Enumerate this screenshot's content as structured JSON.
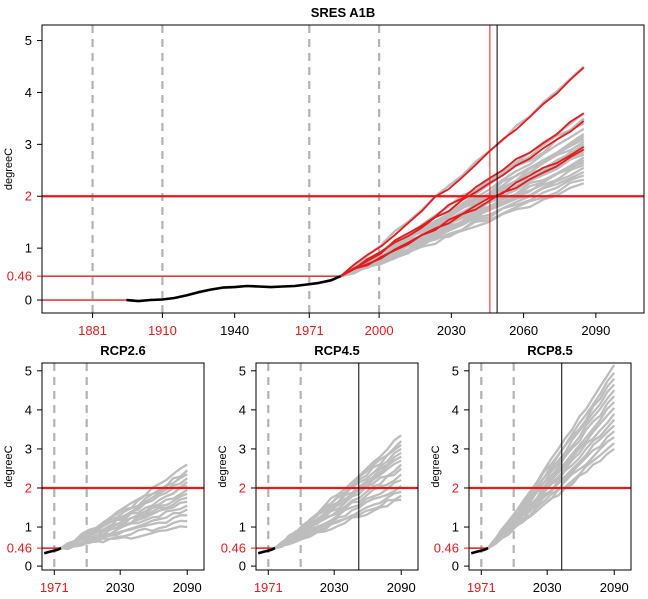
{
  "chart_data": [
    {
      "type": "line",
      "title": "SRES A1B",
      "ylabel": "degreeC",
      "xlim": [
        1860,
        2110
      ],
      "ylim": [
        -0.25,
        5.3
      ],
      "yticks": [
        0,
        1,
        2,
        3,
        4,
        5
      ],
      "xticks": [
        1881,
        1910,
        1940,
        1971,
        2000,
        2030,
        2060,
        2090
      ],
      "red_xticks": [
        1881,
        1910,
        1971,
        2000
      ],
      "gray_dashed_x": [
        1881,
        1910,
        1971,
        2000
      ],
      "red_ref_y": 0.46,
      "red_ref_label": "0.46",
      "threshold_y": 2,
      "vline_red_x": 2046,
      "vline_black_x": 2049,
      "observed": [
        [
          1895,
          0.0
        ],
        [
          1900,
          -0.02
        ],
        [
          1905,
          0.0
        ],
        [
          1910,
          0.01
        ],
        [
          1915,
          0.04
        ],
        [
          1920,
          0.09
        ],
        [
          1925,
          0.15
        ],
        [
          1930,
          0.2
        ],
        [
          1935,
          0.24
        ],
        [
          1940,
          0.25
        ],
        [
          1945,
          0.27
        ],
        [
          1950,
          0.26
        ],
        [
          1955,
          0.25
        ],
        [
          1960,
          0.26
        ],
        [
          1965,
          0.27
        ],
        [
          1970,
          0.3
        ],
        [
          1975,
          0.33
        ],
        [
          1980,
          0.38
        ],
        [
          1984,
          0.46
        ]
      ],
      "projection_start": [
        1984,
        0.46
      ],
      "projection_end_x": 2085,
      "gray_end_values": [
        2.25,
        2.32,
        2.4,
        2.47,
        2.55,
        2.6,
        2.65,
        2.7,
        2.75,
        2.8,
        2.85,
        2.9,
        2.95,
        3.0,
        3.05,
        3.1,
        3.15,
        3.2,
        3.3,
        3.4,
        3.5,
        3.6,
        4.5
      ],
      "red_end_values": [
        2.9,
        2.95,
        3.45,
        3.6,
        4.48
      ]
    },
    {
      "type": "line",
      "title": "RCP2.6",
      "ylabel": "degreeC",
      "xlim": [
        1960,
        2105
      ],
      "ylim": [
        -0.1,
        5.2
      ],
      "yticks": [
        0,
        1,
        2,
        3,
        4,
        5
      ],
      "xticks": [
        1971,
        2030,
        2090
      ],
      "red_xticks": [
        1971
      ],
      "gray_dashed_x": [
        1971,
        2000
      ],
      "red_ref_y": 0.46,
      "red_ref_label": "0.46",
      "threshold_y": 2,
      "vline_black_x": null,
      "observed": [
        [
          1962,
          0.33
        ],
        [
          1966,
          0.36
        ],
        [
          1970,
          0.39
        ],
        [
          1974,
          0.42
        ],
        [
          1977,
          0.46
        ]
      ],
      "projection_start": [
        1977,
        0.46
      ],
      "projection_end_x": 2090,
      "gray_end_values": [
        1.0,
        1.15,
        1.3,
        1.45,
        1.55,
        1.65,
        1.75,
        1.85,
        1.95,
        2.05,
        2.15,
        2.25,
        2.35,
        2.45,
        2.6
      ]
    },
    {
      "type": "line",
      "title": "RCP4.5",
      "ylabel": "degreeC",
      "xlim": [
        1960,
        2105
      ],
      "ylim": [
        -0.1,
        5.2
      ],
      "yticks": [
        0,
        1,
        2,
        3,
        4,
        5
      ],
      "xticks": [
        1971,
        2030,
        2090
      ],
      "red_xticks": [
        1971
      ],
      "gray_dashed_x": [
        1971,
        2000
      ],
      "red_ref_y": 0.46,
      "red_ref_label": "0.46",
      "threshold_y": 2,
      "vline_black_x": 2052,
      "observed": [
        [
          1962,
          0.33
        ],
        [
          1966,
          0.36
        ],
        [
          1970,
          0.39
        ],
        [
          1974,
          0.42
        ],
        [
          1977,
          0.46
        ]
      ],
      "projection_start": [
        1977,
        0.46
      ],
      "projection_end_x": 2090,
      "gray_end_values": [
        1.7,
        1.8,
        1.9,
        2.05,
        2.2,
        2.35,
        2.5,
        2.6,
        2.7,
        2.8,
        2.9,
        3.0,
        3.1,
        3.2,
        3.35
      ]
    },
    {
      "type": "line",
      "title": "RCP8.5",
      "ylabel": "degreeC",
      "xlim": [
        1960,
        2105
      ],
      "ylim": [
        -0.1,
        5.2
      ],
      "yticks": [
        0,
        1,
        2,
        3,
        4,
        5
      ],
      "xticks": [
        1971,
        2030,
        2090
      ],
      "red_xticks": [
        1971
      ],
      "gray_dashed_x": [
        1971,
        2000
      ],
      "red_ref_y": 0.46,
      "red_ref_label": "0.46",
      "threshold_y": 2,
      "vline_black_x": 2043,
      "observed": [
        [
          1962,
          0.33
        ],
        [
          1966,
          0.36
        ],
        [
          1970,
          0.39
        ],
        [
          1974,
          0.42
        ],
        [
          1977,
          0.46
        ]
      ],
      "projection_start": [
        1977,
        0.46
      ],
      "projection_end_x": 2090,
      "gray_end_values": [
        3.0,
        3.15,
        3.3,
        3.45,
        3.6,
        3.75,
        3.9,
        4.05,
        4.2,
        4.35,
        4.5,
        4.65,
        4.8,
        4.95,
        5.15
      ]
    }
  ]
}
